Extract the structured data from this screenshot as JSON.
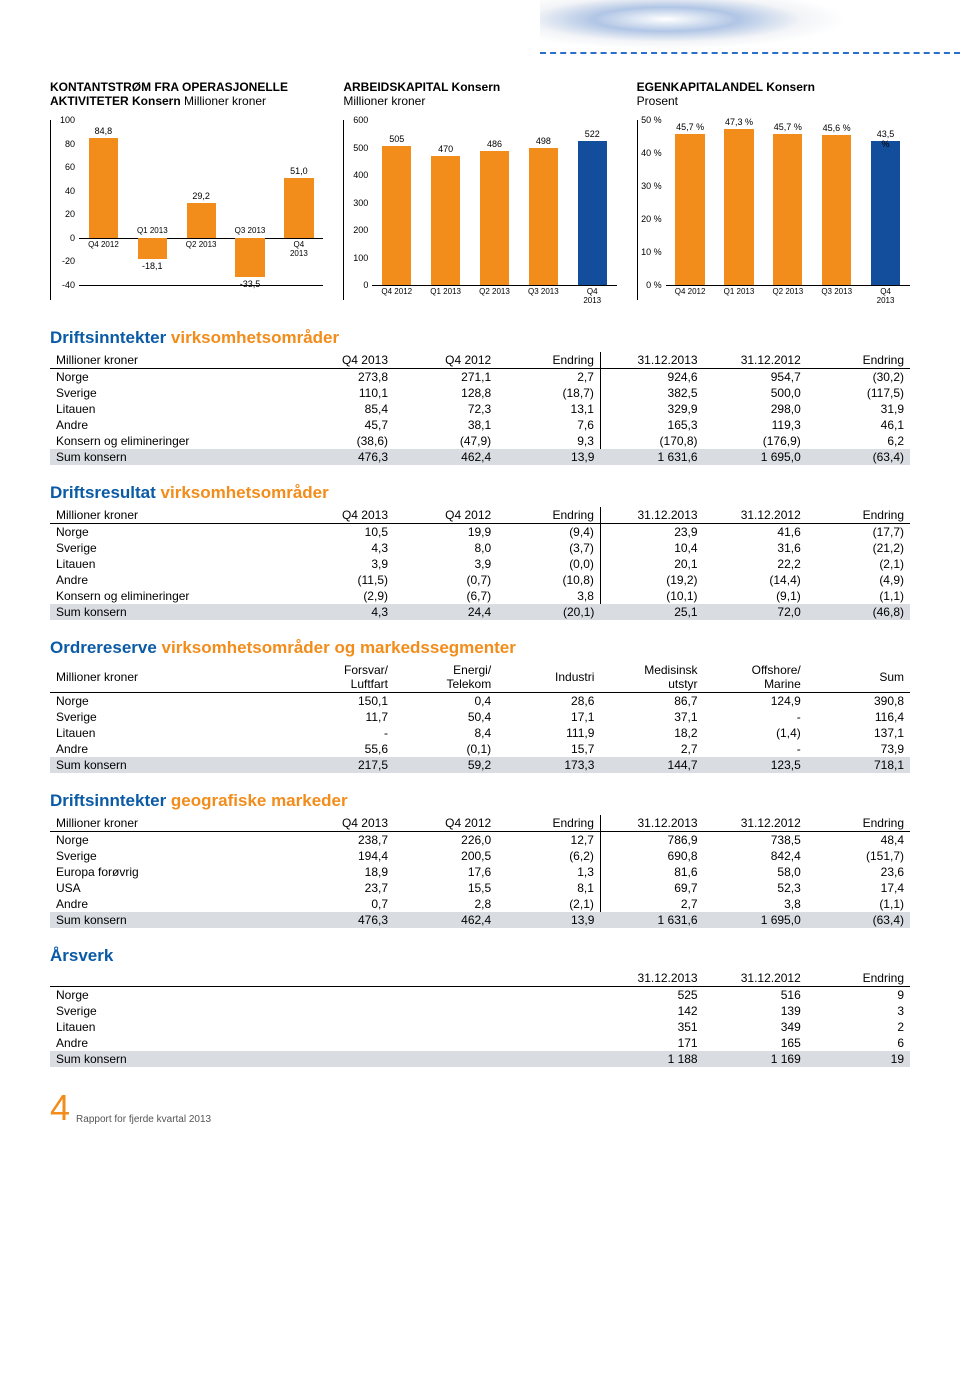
{
  "charts": {
    "c1": {
      "title": "KONTANTSTRØM FRA OPERASJONELLE AKTIVITETER Konsern",
      "subtitle": "Millioner kroner",
      "ylim": [
        -40,
        100
      ],
      "tick_step": 20,
      "categories": [
        "Q4 2012",
        "Q1 2013",
        "Q2 2013",
        "Q3 2013",
        "Q4 2013"
      ],
      "values": [
        84.8,
        -18.1,
        29.2,
        -33.5,
        51.0
      ],
      "labels": [
        "84,8",
        "-18,1",
        "29,2",
        "-33,5",
        "51,0"
      ],
      "bar_color": "#f28c1a"
    },
    "c2": {
      "title": "ARBEIDSKAPITAL Konsern",
      "subtitle": "Millioner kroner",
      "ylim": [
        0,
        600
      ],
      "tick_step": 100,
      "categories": [
        "Q4 2012",
        "Q1 2013",
        "Q2 2013",
        "Q3 2013",
        "Q4 2013"
      ],
      "values": [
        505,
        470,
        486,
        498,
        522
      ],
      "labels": [
        "505",
        "470",
        "486",
        "498",
        "522"
      ],
      "bar_default": "#f28c1a",
      "bar_last": "#124e9b"
    },
    "c3": {
      "title": "EGENKAPITALANDEL Konsern",
      "subtitle": "Prosent",
      "ylim": [
        0,
        50
      ],
      "tick_step": 10,
      "tick_suffix": " %",
      "categories": [
        "Q4 2012",
        "Q1 2013",
        "Q2 2013",
        "Q3 2013",
        "Q4 2013"
      ],
      "values": [
        45.7,
        47.3,
        45.7,
        45.6,
        43.5
      ],
      "labels": [
        "45,7 %",
        "47,3 %",
        "45,7 %",
        "45,6 %",
        "43,5 %"
      ],
      "bar_default": "#f28c1a",
      "bar_last": "#124e9b"
    }
  },
  "sections": {
    "s1": {
      "blue": "Driftsinntekter",
      "orange": "virksomhetsområder"
    },
    "s2": {
      "blue": "Driftsresultat",
      "orange": "virksomhetsområder"
    },
    "s3": {
      "blue": "Ordrereserve",
      "orange": "virksomhetsområder og markedssegmenter"
    },
    "s4": {
      "blue": "Driftsinntekter",
      "orange": "geografiske markeder"
    },
    "s5": {
      "blue": "Årsverk",
      "orange": ""
    }
  },
  "table1": {
    "headers": [
      "Millioner kroner",
      "Q4 2013",
      "Q4 2012",
      "Endring",
      "31.12.2013",
      "31.12.2012",
      "Endring"
    ],
    "rows": [
      [
        "Norge",
        "273,8",
        "271,1",
        "2,7",
        "924,6",
        "954,7",
        "(30,2)"
      ],
      [
        "Sverige",
        "110,1",
        "128,8",
        "(18,7)",
        "382,5",
        "500,0",
        "(117,5)"
      ],
      [
        "Litauen",
        "85,4",
        "72,3",
        "13,1",
        "329,9",
        "298,0",
        "31,9"
      ],
      [
        "Andre",
        "45,7",
        "38,1",
        "7,6",
        "165,3",
        "119,3",
        "46,1"
      ],
      [
        "Konsern og elimineringer",
        "(38,6)",
        "(47,9)",
        "9,3",
        "(170,8)",
        "(176,9)",
        "6,2"
      ]
    ],
    "sum": [
      "Sum konsern",
      "476,3",
      "462,4",
      "13,9",
      "1 631,6",
      "1 695,0",
      "(63,4)"
    ]
  },
  "table2": {
    "headers": [
      "Millioner kroner",
      "Q4 2013",
      "Q4 2012",
      "Endring",
      "31.12.2013",
      "31.12.2012",
      "Endring"
    ],
    "rows": [
      [
        "Norge",
        "10,5",
        "19,9",
        "(9,4)",
        "23,9",
        "41,6",
        "(17,7)"
      ],
      [
        "Sverige",
        "4,3",
        "8,0",
        "(3,7)",
        "10,4",
        "31,6",
        "(21,2)"
      ],
      [
        "Litauen",
        "3,9",
        "3,9",
        "(0,0)",
        "20,1",
        "22,2",
        "(2,1)"
      ],
      [
        "Andre",
        "(11,5)",
        "(0,7)",
        "(10,8)",
        "(19,2)",
        "(14,4)",
        "(4,9)"
      ],
      [
        "Konsern og elimineringer",
        "(2,9)",
        "(6,7)",
        "3,8",
        "(10,1)",
        "(9,1)",
        "(1,1)"
      ]
    ],
    "sum": [
      "Sum konsern",
      "4,3",
      "24,4",
      "(20,1)",
      "25,1",
      "72,0",
      "(46,8)"
    ]
  },
  "table3": {
    "headers": [
      "Millioner kroner",
      "Forsvar/\nLuftfart",
      "Energi/\nTelekom",
      "Industri",
      "Medisinsk\nutstyr",
      "Offshore/\nMarine",
      "Sum"
    ],
    "rows": [
      [
        "Norge",
        "150,1",
        "0,4",
        "28,6",
        "86,7",
        "124,9",
        "390,8"
      ],
      [
        "Sverige",
        "11,7",
        "50,4",
        "17,1",
        "37,1",
        "-",
        "116,4"
      ],
      [
        "Litauen",
        "-",
        "8,4",
        "111,9",
        "18,2",
        "(1,4)",
        "137,1"
      ],
      [
        "Andre",
        "55,6",
        "(0,1)",
        "15,7",
        "2,7",
        "-",
        "73,9"
      ]
    ],
    "sum": [
      "Sum konsern",
      "217,5",
      "59,2",
      "173,3",
      "144,7",
      "123,5",
      "718,1"
    ]
  },
  "table4": {
    "headers": [
      "Millioner kroner",
      "Q4 2013",
      "Q4 2012",
      "Endring",
      "31.12.2013",
      "31.12.2012",
      "Endring"
    ],
    "rows": [
      [
        "Norge",
        "238,7",
        "226,0",
        "12,7",
        "786,9",
        "738,5",
        "48,4"
      ],
      [
        "Sverige",
        "194,4",
        "200,5",
        "(6,2)",
        "690,8",
        "842,4",
        "(151,7)"
      ],
      [
        "Europa forøvrig",
        "18,9",
        "17,6",
        "1,3",
        "81,6",
        "58,0",
        "23,6"
      ],
      [
        "USA",
        "23,7",
        "15,5",
        "8,1",
        "69,7",
        "52,3",
        "17,4"
      ],
      [
        "Andre",
        "0,7",
        "2,8",
        "(2,1)",
        "2,7",
        "3,8",
        "(1,1)"
      ]
    ],
    "sum": [
      "Sum konsern",
      "476,3",
      "462,4",
      "13,9",
      "1 631,6",
      "1 695,0",
      "(63,4)"
    ]
  },
  "table5": {
    "headers": [
      "",
      "31.12.2013",
      "31.12.2012",
      "Endring"
    ],
    "rows": [
      [
        "Norge",
        "525",
        "516",
        "9"
      ],
      [
        "Sverige",
        "142",
        "139",
        "3"
      ],
      [
        "Litauen",
        "351",
        "349",
        "2"
      ],
      [
        "Andre",
        "171",
        "165",
        "6"
      ]
    ],
    "sum": [
      "Sum konsern",
      "1 188",
      "1 169",
      "19"
    ]
  },
  "footer": {
    "page": "4",
    "text": "Rapport for fjerde kvartal 2013"
  }
}
